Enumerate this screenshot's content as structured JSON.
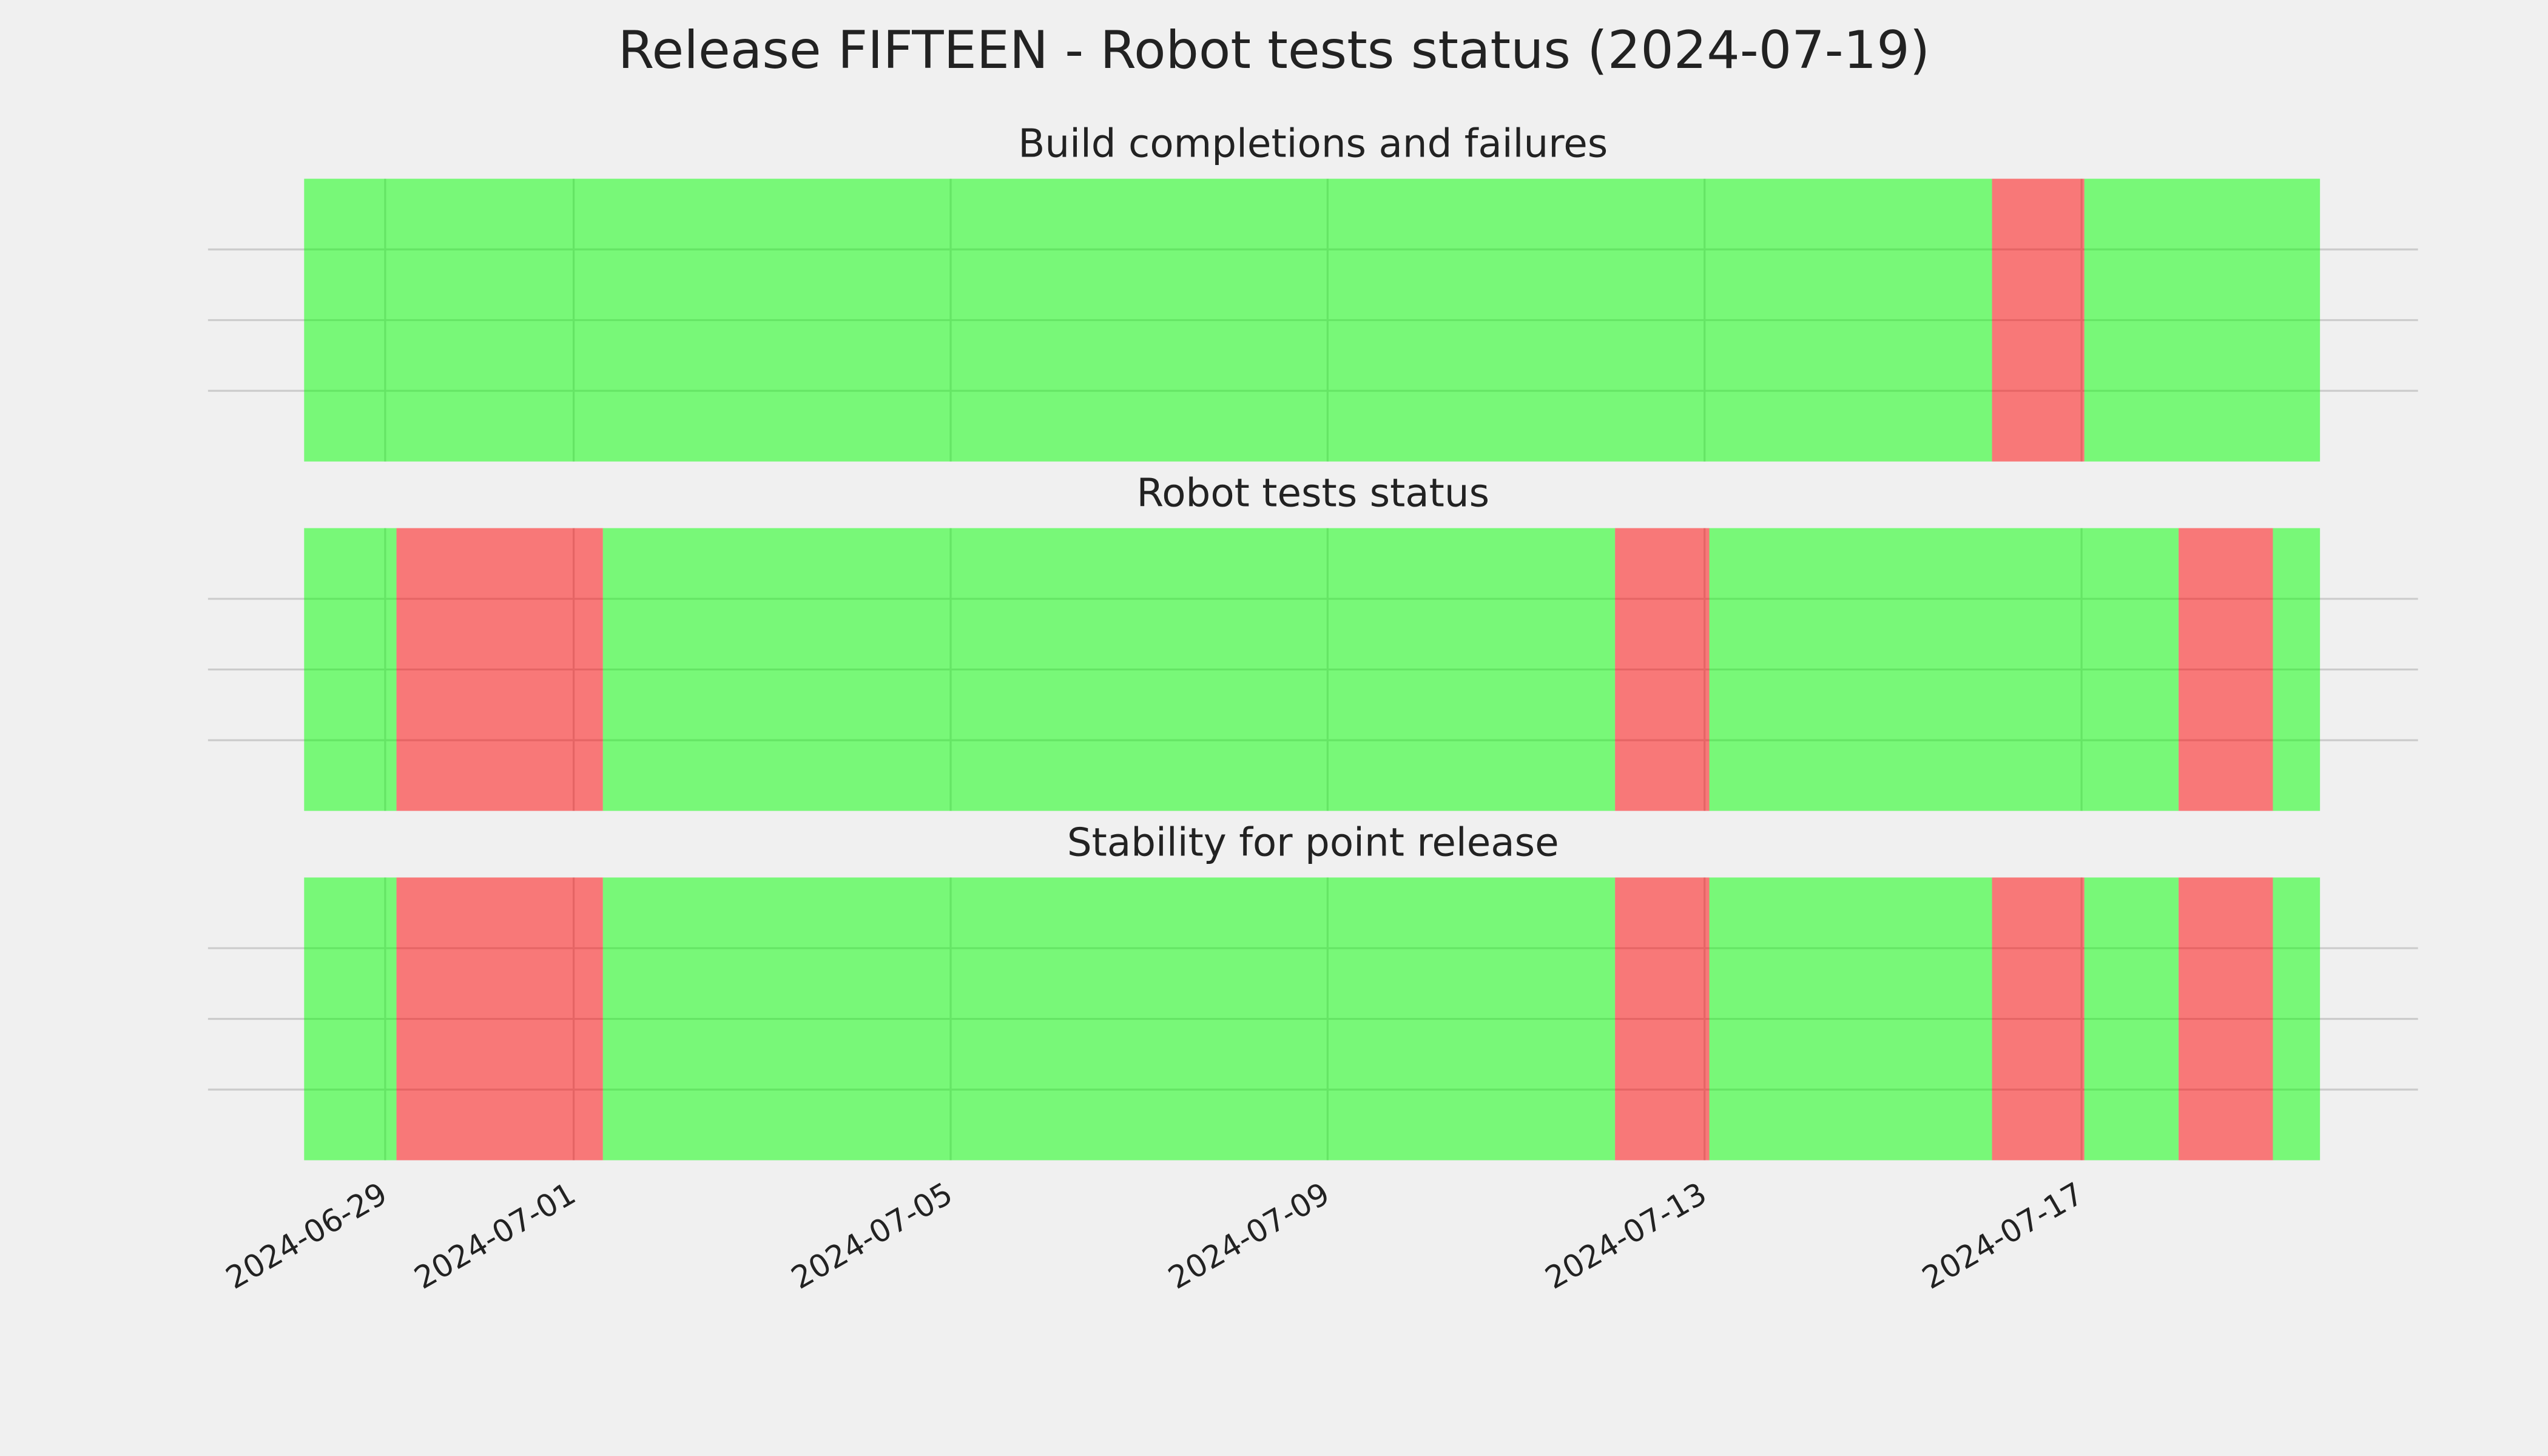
{
  "title": "Release FIFTEEN - Robot tests status (2024-07-19)",
  "chart_data": [
    {
      "type": "timeline",
      "title": "Build completions and failures",
      "alpha": 0.5,
      "xlim": [
        19901.12,
        19924.57
      ],
      "ylim": [
        0,
        1
      ],
      "yticks": [
        0.25,
        0.5,
        0.75
      ],
      "grid": true,
      "xticks": [
        {
          "value": 19903,
          "label": "2024-06-29"
        },
        {
          "value": 19905,
          "label": "2024-07-01"
        },
        {
          "value": 19909,
          "label": "2024-07-05"
        },
        {
          "value": 19913,
          "label": "2024-07-09"
        },
        {
          "value": 19917,
          "label": "2024-07-13"
        },
        {
          "value": 19921,
          "label": "2024-07-17"
        }
      ],
      "spans": [
        {
          "start": 19902.14,
          "end": 19920.05,
          "color": "#00ff00"
        },
        {
          "start": 19920.05,
          "end": 19921.03,
          "color": "#ff0000"
        },
        {
          "start": 19921.03,
          "end": 19923.53,
          "color": "#00ff00"
        }
      ]
    },
    {
      "type": "timeline",
      "title": "Robot tests status",
      "alpha": 0.5,
      "xlim": [
        19901.12,
        19924.57
      ],
      "ylim": [
        0,
        1
      ],
      "yticks": [
        0.25,
        0.5,
        0.75
      ],
      "grid": true,
      "xticks": [
        {
          "value": 19903,
          "label": "2024-06-29"
        },
        {
          "value": 19905,
          "label": "2024-07-01"
        },
        {
          "value": 19909,
          "label": "2024-07-05"
        },
        {
          "value": 19913,
          "label": "2024-07-09"
        },
        {
          "value": 19917,
          "label": "2024-07-13"
        },
        {
          "value": 19921,
          "label": "2024-07-17"
        }
      ],
      "spans": [
        {
          "start": 19902.14,
          "end": 19903.12,
          "color": "#00ff00"
        },
        {
          "start": 19903.12,
          "end": 19905.31,
          "color": "#ff0000"
        },
        {
          "start": 19905.31,
          "end": 19916.05,
          "color": "#00ff00"
        },
        {
          "start": 19916.05,
          "end": 19917.05,
          "color": "#ff0000"
        },
        {
          "start": 19917.05,
          "end": 19922.03,
          "color": "#00ff00"
        },
        {
          "start": 19922.03,
          "end": 19923.03,
          "color": "#ff0000"
        },
        {
          "start": 19923.03,
          "end": 19923.53,
          "color": "#00ff00"
        }
      ]
    },
    {
      "type": "timeline",
      "title": "Stability for point release",
      "alpha": 0.5,
      "show_xtick_labels": true,
      "xlim": [
        19901.12,
        19924.57
      ],
      "ylim": [
        0,
        1
      ],
      "yticks": [
        0.25,
        0.5,
        0.75
      ],
      "grid": true,
      "xticks": [
        {
          "value": 19903,
          "label": "2024-06-29"
        },
        {
          "value": 19905,
          "label": "2024-07-01"
        },
        {
          "value": 19909,
          "label": "2024-07-05"
        },
        {
          "value": 19913,
          "label": "2024-07-09"
        },
        {
          "value": 19917,
          "label": "2024-07-13"
        },
        {
          "value": 19921,
          "label": "2024-07-17"
        }
      ],
      "spans": [
        {
          "start": 19902.14,
          "end": 19903.12,
          "color": "#00ff00"
        },
        {
          "start": 19903.12,
          "end": 19905.31,
          "color": "#ff0000"
        },
        {
          "start": 19905.31,
          "end": 19916.05,
          "color": "#00ff00"
        },
        {
          "start": 19916.05,
          "end": 19917.05,
          "color": "#ff0000"
        },
        {
          "start": 19917.05,
          "end": 19920.05,
          "color": "#00ff00"
        },
        {
          "start": 19920.05,
          "end": 19921.03,
          "color": "#ff0000"
        },
        {
          "start": 19921.03,
          "end": 19922.03,
          "color": "#00ff00"
        },
        {
          "start": 19922.03,
          "end": 19923.03,
          "color": "#ff0000"
        },
        {
          "start": 19923.03,
          "end": 19923.53,
          "color": "#00ff00"
        }
      ]
    }
  ]
}
